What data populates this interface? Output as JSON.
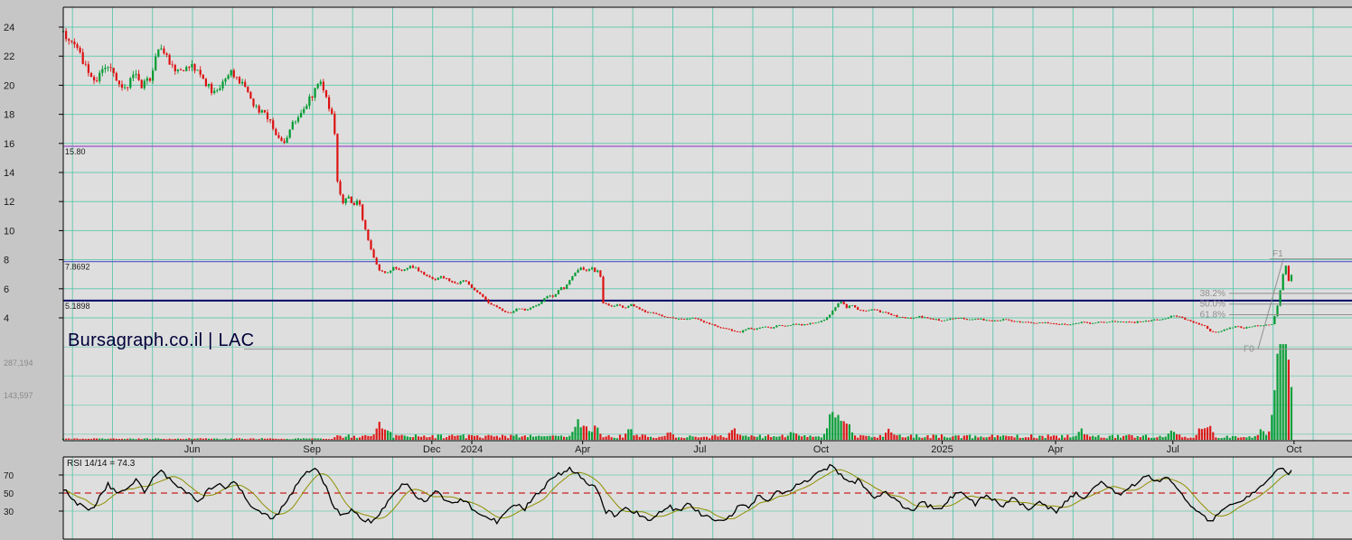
{
  "watermark": "Bursagraph.co.il | LAC",
  "colors": {
    "up": "#009b30",
    "down": "#dd1111",
    "grid": "#45c3a2",
    "plot_bg": "#dedede",
    "frame_bg": "#c6c6c6",
    "fib": "#8f8f8f",
    "rsi_line": "#000000",
    "rsi_ma": "#8f8f00",
    "rsi_mid": "#cc2222",
    "level_label": "#1a1a1a",
    "axis_text": "#1a1a1a",
    "volume_text": "#8a8a8a",
    "watermark_text": "#00003a"
  },
  "chart_data": {
    "type": "candlestick",
    "title": "Bursagraph.co.il | LAC",
    "symbol": "LAC",
    "y_axis": {
      "ticks": [
        24,
        22,
        20,
        18,
        16,
        14,
        12,
        10,
        8,
        6,
        4
      ]
    },
    "x_axis": {
      "ticks": [
        {
          "label": "Jun",
          "t": 0.1
        },
        {
          "label": "Sep",
          "t": 0.193
        },
        {
          "label": "Dec",
          "t": 0.286
        },
        {
          "label": "2024",
          "t": 0.317
        },
        {
          "label": "Apr",
          "t": 0.403
        },
        {
          "label": "Jul",
          "t": 0.494
        },
        {
          "label": "Oct",
          "t": 0.588
        },
        {
          "label": "2025",
          "t": 0.682
        },
        {
          "label": "Apr",
          "t": 0.77
        },
        {
          "label": "Jul",
          "t": 0.861
        },
        {
          "label": "Oct",
          "t": 0.955
        }
      ]
    },
    "levels": [
      {
        "label": "15.80",
        "value": 15.8,
        "color": "#9b4fd2",
        "width": 1.2
      },
      {
        "label": "7.8692",
        "value": 7.8692,
        "color": "#5553cb",
        "width": 1.2
      },
      {
        "label": "5.1898",
        "value": 5.1898,
        "color": "#000066",
        "width": 2
      }
    ],
    "fibonacci": {
      "f0": {
        "label": "F0",
        "price": 1.85
      },
      "f1": {
        "label": "F1",
        "price": 8.05
      },
      "retracements": [
        {
          "label": "38.2%",
          "pct": 0.382
        },
        {
          "label": "50.0%",
          "pct": 0.5
        },
        {
          "label": "61.8%",
          "pct": 0.618
        }
      ]
    },
    "price_anchors": [
      [
        0.0,
        23.6
      ],
      [
        0.006,
        23.0
      ],
      [
        0.011,
        22.4
      ],
      [
        0.018,
        21.2
      ],
      [
        0.025,
        20.3
      ],
      [
        0.031,
        21.0
      ],
      [
        0.036,
        21.6
      ],
      [
        0.042,
        20.1
      ],
      [
        0.048,
        19.7
      ],
      [
        0.055,
        20.9
      ],
      [
        0.061,
        19.9
      ],
      [
        0.068,
        20.6
      ],
      [
        0.074,
        22.7
      ],
      [
        0.079,
        22.1
      ],
      [
        0.085,
        21.2
      ],
      [
        0.091,
        20.8
      ],
      [
        0.097,
        21.5
      ],
      [
        0.104,
        20.9
      ],
      [
        0.111,
        20.1
      ],
      [
        0.117,
        19.4
      ],
      [
        0.124,
        20.2
      ],
      [
        0.13,
        21.0
      ],
      [
        0.136,
        20.3
      ],
      [
        0.142,
        19.8
      ],
      [
        0.148,
        18.6
      ],
      [
        0.155,
        18.1
      ],
      [
        0.161,
        17.4
      ],
      [
        0.167,
        16.4
      ],
      [
        0.171,
        15.9
      ],
      [
        0.177,
        17.2
      ],
      [
        0.183,
        18.0
      ],
      [
        0.189,
        18.8
      ],
      [
        0.195,
        19.6
      ],
      [
        0.199,
        20.3
      ],
      [
        0.203,
        19.5
      ],
      [
        0.207,
        18.3
      ],
      [
        0.21,
        17.5
      ],
      [
        0.213,
        13.0
      ],
      [
        0.217,
        11.9
      ],
      [
        0.221,
        12.5
      ],
      [
        0.225,
        11.7
      ],
      [
        0.229,
        12.3
      ],
      [
        0.233,
        10.5
      ],
      [
        0.237,
        9.1
      ],
      [
        0.241,
        8.1
      ],
      [
        0.245,
        7.3
      ],
      [
        0.251,
        7.1
      ],
      [
        0.257,
        7.5
      ],
      [
        0.263,
        7.2
      ],
      [
        0.269,
        7.6
      ],
      [
        0.275,
        7.3
      ],
      [
        0.281,
        6.9
      ],
      [
        0.287,
        6.6
      ],
      [
        0.293,
        6.9
      ],
      [
        0.299,
        6.6
      ],
      [
        0.305,
        6.3
      ],
      [
        0.311,
        6.6
      ],
      [
        0.317,
        6.1
      ],
      [
        0.323,
        5.7
      ],
      [
        0.329,
        5.1
      ],
      [
        0.335,
        4.8
      ],
      [
        0.341,
        4.5
      ],
      [
        0.347,
        4.3
      ],
      [
        0.353,
        4.7
      ],
      [
        0.359,
        4.5
      ],
      [
        0.365,
        4.8
      ],
      [
        0.371,
        5.1
      ],
      [
        0.377,
        5.6
      ],
      [
        0.381,
        5.4
      ],
      [
        0.385,
        6.1
      ],
      [
        0.389,
        6.0
      ],
      [
        0.393,
        6.6
      ],
      [
        0.397,
        7.1
      ],
      [
        0.401,
        7.5
      ],
      [
        0.405,
        7.2
      ],
      [
        0.409,
        7.5
      ],
      [
        0.413,
        7.1
      ],
      [
        0.416,
        7.4
      ],
      [
        0.419,
        5.0
      ],
      [
        0.424,
        4.8
      ],
      [
        0.429,
        4.9
      ],
      [
        0.435,
        4.7
      ],
      [
        0.441,
        4.9
      ],
      [
        0.447,
        4.6
      ],
      [
        0.453,
        4.4
      ],
      [
        0.459,
        4.3
      ],
      [
        0.465,
        4.1
      ],
      [
        0.471,
        4.0
      ],
      [
        0.477,
        3.9
      ],
      [
        0.483,
        3.9
      ],
      [
        0.489,
        4.0
      ],
      [
        0.495,
        3.8
      ],
      [
        0.501,
        3.6
      ],
      [
        0.507,
        3.4
      ],
      [
        0.513,
        3.3
      ],
      [
        0.519,
        3.1
      ],
      [
        0.525,
        3.0
      ],
      [
        0.531,
        3.3
      ],
      [
        0.537,
        3.2
      ],
      [
        0.543,
        3.4
      ],
      [
        0.549,
        3.3
      ],
      [
        0.555,
        3.5
      ],
      [
        0.561,
        3.4
      ],
      [
        0.567,
        3.6
      ],
      [
        0.573,
        3.5
      ],
      [
        0.579,
        3.6
      ],
      [
        0.585,
        3.7
      ],
      [
        0.591,
        3.9
      ],
      [
        0.596,
        4.3
      ],
      [
        0.6,
        4.9
      ],
      [
        0.604,
        5.1
      ],
      [
        0.608,
        4.7
      ],
      [
        0.612,
        4.9
      ],
      [
        0.616,
        4.6
      ],
      [
        0.622,
        4.5
      ],
      [
        0.628,
        4.6
      ],
      [
        0.634,
        4.4
      ],
      [
        0.64,
        4.3
      ],
      [
        0.646,
        4.1
      ],
      [
        0.652,
        4.0
      ],
      [
        0.658,
        4.0
      ],
      [
        0.664,
        4.1
      ],
      [
        0.67,
        4.0
      ],
      [
        0.676,
        3.9
      ],
      [
        0.682,
        3.8
      ],
      [
        0.688,
        3.9
      ],
      [
        0.694,
        4.0
      ],
      [
        0.7,
        3.9
      ],
      [
        0.706,
        3.9
      ],
      [
        0.712,
        3.9
      ],
      [
        0.718,
        3.8
      ],
      [
        0.724,
        3.8
      ],
      [
        0.73,
        3.9
      ],
      [
        0.736,
        3.8
      ],
      [
        0.742,
        3.7
      ],
      [
        0.748,
        3.7
      ],
      [
        0.754,
        3.6
      ],
      [
        0.76,
        3.7
      ],
      [
        0.766,
        3.6
      ],
      [
        0.772,
        3.6
      ],
      [
        0.778,
        3.5
      ],
      [
        0.784,
        3.6
      ],
      [
        0.79,
        3.7
      ],
      [
        0.796,
        3.6
      ],
      [
        0.802,
        3.7
      ],
      [
        0.808,
        3.7
      ],
      [
        0.814,
        3.8
      ],
      [
        0.82,
        3.7
      ],
      [
        0.826,
        3.7
      ],
      [
        0.832,
        3.7
      ],
      [
        0.838,
        3.8
      ],
      [
        0.844,
        3.8
      ],
      [
        0.85,
        3.9
      ],
      [
        0.856,
        4.0
      ],
      [
        0.862,
        4.2
      ],
      [
        0.868,
        4.0
      ],
      [
        0.874,
        3.8
      ],
      [
        0.88,
        3.6
      ],
      [
        0.886,
        3.4
      ],
      [
        0.89,
        3.1
      ],
      [
        0.894,
        3.0
      ],
      [
        0.898,
        3.1
      ],
      [
        0.904,
        3.3
      ],
      [
        0.91,
        3.4
      ],
      [
        0.916,
        3.3
      ],
      [
        0.922,
        3.4
      ],
      [
        0.928,
        3.5
      ],
      [
        0.934,
        3.5
      ],
      [
        0.938,
        3.6
      ],
      [
        0.94,
        4.1
      ],
      [
        0.942,
        4.8
      ],
      [
        0.944,
        5.7
      ],
      [
        0.946,
        6.7
      ],
      [
        0.948,
        7.9
      ],
      [
        0.95,
        7.1
      ],
      [
        0.951,
        6.5
      ],
      [
        0.953,
        6.9
      ]
    ],
    "volume": {
      "scale_labels": [
        "287,194",
        "143,597"
      ],
      "max_scale": 287194,
      "spikes": [
        [
          0.245,
          42000
        ],
        [
          0.251,
          26000
        ],
        [
          0.399,
          52000
        ],
        [
          0.405,
          30000
        ],
        [
          0.413,
          40000
        ],
        [
          0.44,
          22000
        ],
        [
          0.47,
          18000
        ],
        [
          0.52,
          26000
        ],
        [
          0.565,
          20000
        ],
        [
          0.596,
          80000
        ],
        [
          0.601,
          60000
        ],
        [
          0.606,
          40000
        ],
        [
          0.61,
          30000
        ],
        [
          0.64,
          24000
        ],
        [
          0.79,
          20000
        ],
        [
          0.86,
          22000
        ],
        [
          0.883,
          30000
        ],
        [
          0.889,
          38000
        ],
        [
          0.93,
          25000
        ],
        [
          0.94,
          110000
        ],
        [
          0.944,
          287194
        ],
        [
          0.947,
          235000
        ],
        [
          0.95,
          170000
        ],
        [
          0.953,
          95000
        ]
      ]
    },
    "rsi": {
      "label": "RSI 14/14 = 74.3",
      "last_value": 74.3,
      "ticks": [
        70,
        50,
        30
      ],
      "midline": 50,
      "anchors": [
        [
          0.001,
          55
        ],
        [
          0.011,
          38
        ],
        [
          0.021,
          30
        ],
        [
          0.028,
          45
        ],
        [
          0.035,
          60
        ],
        [
          0.042,
          48
        ],
        [
          0.049,
          55
        ],
        [
          0.056,
          65
        ],
        [
          0.063,
          52
        ],
        [
          0.07,
          70
        ],
        [
          0.077,
          74
        ],
        [
          0.084,
          62
        ],
        [
          0.091,
          55
        ],
        [
          0.098,
          48
        ],
        [
          0.105,
          40
        ],
        [
          0.112,
          52
        ],
        [
          0.119,
          60
        ],
        [
          0.126,
          55
        ],
        [
          0.133,
          62
        ],
        [
          0.14,
          48
        ],
        [
          0.147,
          35
        ],
        [
          0.154,
          28
        ],
        [
          0.161,
          22
        ],
        [
          0.168,
          30
        ],
        [
          0.175,
          45
        ],
        [
          0.182,
          60
        ],
        [
          0.189,
          72
        ],
        [
          0.196,
          78
        ],
        [
          0.203,
          60
        ],
        [
          0.21,
          35
        ],
        [
          0.217,
          25
        ],
        [
          0.224,
          32
        ],
        [
          0.231,
          22
        ],
        [
          0.238,
          18
        ],
        [
          0.245,
          25
        ],
        [
          0.252,
          42
        ],
        [
          0.259,
          55
        ],
        [
          0.266,
          62
        ],
        [
          0.273,
          48
        ],
        [
          0.281,
          40
        ],
        [
          0.288,
          52
        ],
        [
          0.295,
          45
        ],
        [
          0.302,
          38
        ],
        [
          0.309,
          45
        ],
        [
          0.316,
          35
        ],
        [
          0.323,
          28
        ],
        [
          0.33,
          22
        ],
        [
          0.337,
          18
        ],
        [
          0.344,
          28
        ],
        [
          0.351,
          38
        ],
        [
          0.358,
          32
        ],
        [
          0.365,
          45
        ],
        [
          0.372,
          55
        ],
        [
          0.379,
          65
        ],
        [
          0.386,
          72
        ],
        [
          0.393,
          78
        ],
        [
          0.4,
          70
        ],
        [
          0.407,
          62
        ],
        [
          0.414,
          55
        ],
        [
          0.421,
          30
        ],
        [
          0.428,
          25
        ],
        [
          0.435,
          35
        ],
        [
          0.442,
          30
        ],
        [
          0.449,
          25
        ],
        [
          0.456,
          20
        ],
        [
          0.463,
          28
        ],
        [
          0.47,
          35
        ],
        [
          0.477,
          30
        ],
        [
          0.484,
          38
        ],
        [
          0.491,
          30
        ],
        [
          0.498,
          25
        ],
        [
          0.505,
          20
        ],
        [
          0.512,
          17
        ],
        [
          0.519,
          25
        ],
        [
          0.526,
          40
        ],
        [
          0.533,
          35
        ],
        [
          0.54,
          48
        ],
        [
          0.547,
          42
        ],
        [
          0.554,
          55
        ],
        [
          0.561,
          48
        ],
        [
          0.568,
          58
        ],
        [
          0.575,
          62
        ],
        [
          0.582,
          68
        ],
        [
          0.589,
          75
        ],
        [
          0.596,
          80
        ],
        [
          0.603,
          70
        ],
        [
          0.61,
          60
        ],
        [
          0.617,
          65
        ],
        [
          0.624,
          52
        ],
        [
          0.631,
          45
        ],
        [
          0.638,
          50
        ],
        [
          0.645,
          42
        ],
        [
          0.652,
          35
        ],
        [
          0.659,
          30
        ],
        [
          0.666,
          40
        ],
        [
          0.673,
          35
        ],
        [
          0.68,
          32
        ],
        [
          0.687,
          42
        ],
        [
          0.694,
          52
        ],
        [
          0.701,
          45
        ],
        [
          0.708,
          38
        ],
        [
          0.715,
          48
        ],
        [
          0.722,
          42
        ],
        [
          0.729,
          35
        ],
        [
          0.736,
          45
        ],
        [
          0.743,
          38
        ],
        [
          0.75,
          30
        ],
        [
          0.757,
          40
        ],
        [
          0.764,
          35
        ],
        [
          0.771,
          28
        ],
        [
          0.778,
          40
        ],
        [
          0.785,
          50
        ],
        [
          0.792,
          45
        ],
        [
          0.799,
          55
        ],
        [
          0.806,
          62
        ],
        [
          0.813,
          55
        ],
        [
          0.82,
          48
        ],
        [
          0.827,
          55
        ],
        [
          0.834,
          62
        ],
        [
          0.841,
          70
        ],
        [
          0.848,
          62
        ],
        [
          0.855,
          68
        ],
        [
          0.862,
          60
        ],
        [
          0.869,
          48
        ],
        [
          0.876,
          35
        ],
        [
          0.883,
          25
        ],
        [
          0.89,
          18
        ],
        [
          0.897,
          28
        ],
        [
          0.904,
          35
        ],
        [
          0.911,
          40
        ],
        [
          0.918,
          45
        ],
        [
          0.925,
          52
        ],
        [
          0.932,
          58
        ],
        [
          0.939,
          70
        ],
        [
          0.943,
          80
        ],
        [
          0.946,
          76
        ],
        [
          0.95,
          70
        ],
        [
          0.953,
          74.3
        ]
      ]
    }
  }
}
